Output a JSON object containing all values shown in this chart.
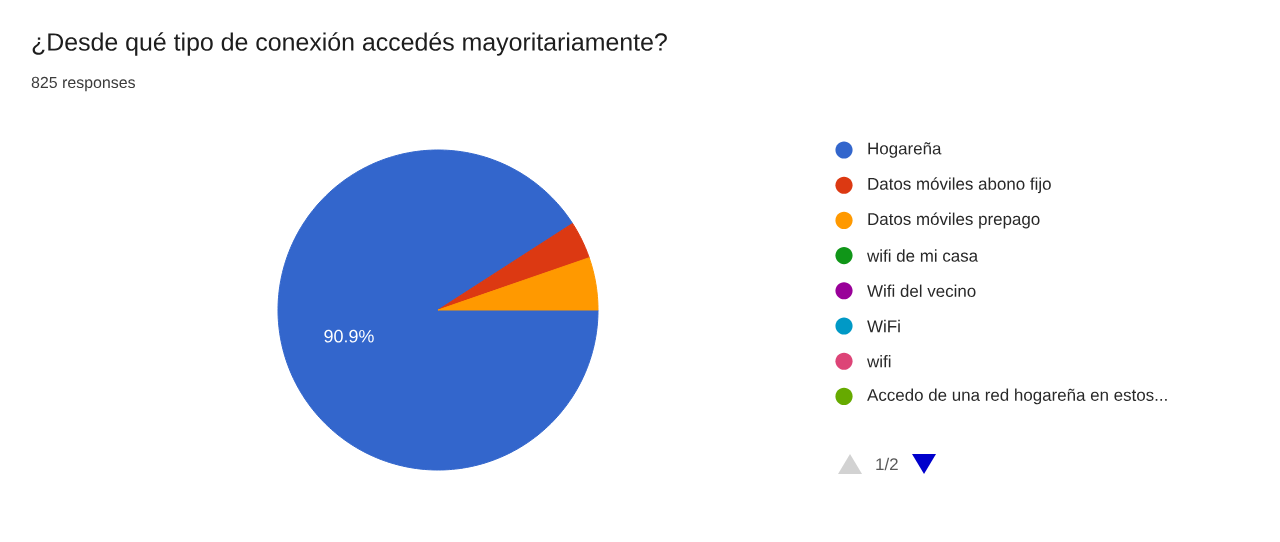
{
  "chart_data": {
    "type": "pie",
    "title": "¿Desde qué tipo de conexión accedés mayoritariamente?",
    "subtitle": "825 responses",
    "categories": [
      "Hogareña",
      "Datos móviles abono fijo",
      "Datos móviles prepago",
      "wifi de mi casa",
      "Wifi del vecino",
      "WiFi",
      "wifi",
      "Accedo de una red hogareña en estos..."
    ],
    "values": [
      90.9,
      3.8,
      5.3,
      null,
      null,
      null,
      null,
      null
    ],
    "colors": [
      "#3366cc",
      "#dc3912",
      "#ff9900",
      "#109618",
      "#990099",
      "#0099c6",
      "#dd4477",
      "#66aa00"
    ],
    "value_labels": [
      "90.9%",
      null,
      null,
      null,
      null,
      null,
      null,
      null
    ],
    "legend": "right",
    "annotations": [
      "1/2"
    ]
  }
}
